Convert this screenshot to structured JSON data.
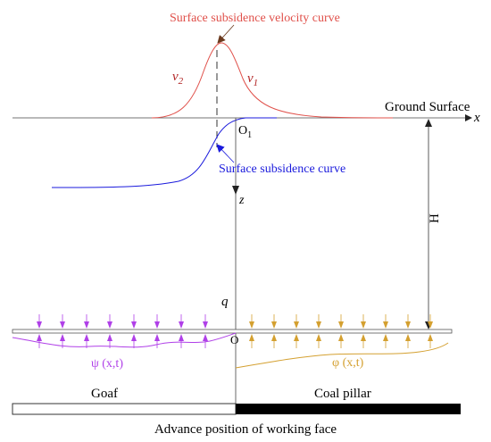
{
  "labels": {
    "velocity_curve": "Surface subsidence velocity curve",
    "subsidence_curve": "Surface subsidence curve",
    "ground_surface": "Ground  Surface",
    "x_axis": "x",
    "z_axis": "z",
    "origin_top": "O",
    "origin_top_sub": "1",
    "origin_bottom": "O",
    "v2": "v",
    "v2_sub": "2",
    "v1": "v",
    "v1_sub": "1",
    "depth": "H",
    "load": "q",
    "psi": "ψ (x,t)",
    "phi": "φ (x,t)",
    "coal_pillar": "Coal pillar",
    "goaf": "Goaf",
    "caption": "Advance position of working face"
  },
  "colors": {
    "velocity": "#e0504a",
    "subsidence": "#1a1adc",
    "psi": "#b040e8",
    "phi": "#d4a030",
    "axis": "#333333",
    "pillar": "#000000"
  }
}
